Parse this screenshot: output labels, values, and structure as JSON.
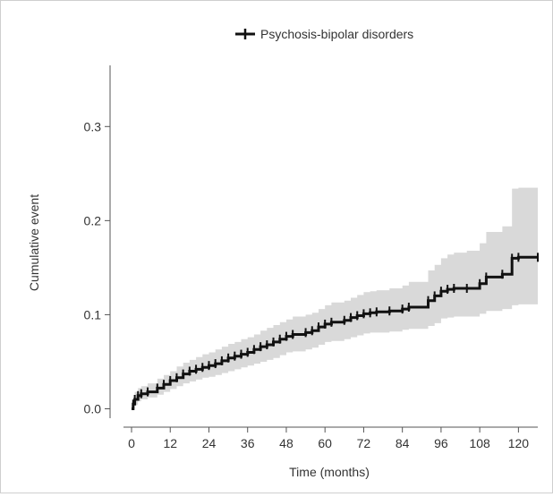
{
  "chart_data": {
    "type": "line",
    "xlabel": "Time (months)",
    "ylabel": "Cumulative event",
    "xlim": [
      -2.5,
      126
    ],
    "ylim": [
      -0.01,
      0.365
    ],
    "x_ticks": [
      0,
      12,
      24,
      36,
      48,
      60,
      72,
      84,
      96,
      108,
      120
    ],
    "y_ticks": [
      0.0,
      0.1,
      0.2,
      0.3
    ],
    "y_tick_labels": [
      "0.0",
      "0.1",
      "0.2",
      "0.3"
    ],
    "legend": {
      "position": "top",
      "entries": [
        "Psychosis-bipolar disorders"
      ]
    },
    "grid": false,
    "colors": {
      "line": "#111111",
      "band": "#d9d9d9",
      "axis": "#555555"
    },
    "series": [
      {
        "name": "Psychosis-bipolar disorders",
        "x": [
          0,
          0.5,
          1,
          2,
          3,
          5,
          8,
          10,
          12,
          14,
          16,
          18,
          20,
          22,
          24,
          26,
          28,
          30,
          32,
          34,
          36,
          38,
          40,
          42,
          44,
          46,
          48,
          50,
          54,
          56,
          58,
          60,
          62,
          66,
          68,
          70,
          72,
          74,
          76,
          80,
          84,
          86,
          92,
          94,
          96,
          98,
          100,
          104,
          108,
          110,
          115,
          118,
          120,
          126
        ],
        "y": [
          0.0,
          0.005,
          0.01,
          0.014,
          0.016,
          0.018,
          0.022,
          0.026,
          0.03,
          0.033,
          0.037,
          0.04,
          0.042,
          0.044,
          0.046,
          0.048,
          0.051,
          0.054,
          0.056,
          0.058,
          0.06,
          0.063,
          0.066,
          0.068,
          0.071,
          0.074,
          0.077,
          0.079,
          0.081,
          0.083,
          0.087,
          0.09,
          0.092,
          0.094,
          0.097,
          0.099,
          0.101,
          0.102,
          0.103,
          0.104,
          0.106,
          0.108,
          0.115,
          0.12,
          0.125,
          0.127,
          0.128,
          0.128,
          0.133,
          0.14,
          0.143,
          0.16,
          0.161,
          0.161
        ]
      }
    ],
    "ci_upper": [
      0.0,
      0.01,
      0.018,
      0.022,
      0.024,
      0.027,
      0.032,
      0.036,
      0.04,
      0.045,
      0.049,
      0.052,
      0.055,
      0.058,
      0.06,
      0.063,
      0.066,
      0.069,
      0.071,
      0.074,
      0.076,
      0.079,
      0.083,
      0.086,
      0.089,
      0.092,
      0.095,
      0.098,
      0.1,
      0.102,
      0.106,
      0.11,
      0.113,
      0.115,
      0.118,
      0.121,
      0.124,
      0.125,
      0.126,
      0.128,
      0.131,
      0.135,
      0.147,
      0.153,
      0.16,
      0.164,
      0.166,
      0.168,
      0.176,
      0.188,
      0.194,
      0.234,
      0.235,
      0.235
    ],
    "ci_lower": [
      0.0,
      0.0,
      0.004,
      0.008,
      0.01,
      0.012,
      0.015,
      0.018,
      0.021,
      0.024,
      0.027,
      0.029,
      0.031,
      0.033,
      0.034,
      0.036,
      0.038,
      0.04,
      0.042,
      0.044,
      0.046,
      0.048,
      0.05,
      0.052,
      0.054,
      0.057,
      0.06,
      0.061,
      0.063,
      0.065,
      0.068,
      0.071,
      0.072,
      0.074,
      0.076,
      0.078,
      0.08,
      0.081,
      0.081,
      0.082,
      0.084,
      0.085,
      0.088,
      0.091,
      0.096,
      0.097,
      0.098,
      0.098,
      0.101,
      0.104,
      0.106,
      0.11,
      0.111,
      0.111
    ]
  }
}
